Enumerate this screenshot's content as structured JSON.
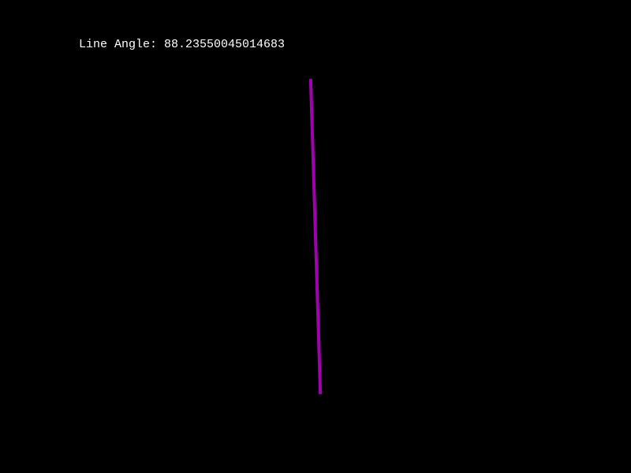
{
  "readout": {
    "label": "Line Angle: ",
    "angle_value": "88.23550045014683",
    "text": "Line Angle: 88.23550045014683"
  },
  "line": {
    "angle_degrees": 88.23550045014683,
    "color": "#a000b0"
  },
  "colors": {
    "background": "#000000",
    "text": "#ffffff"
  }
}
